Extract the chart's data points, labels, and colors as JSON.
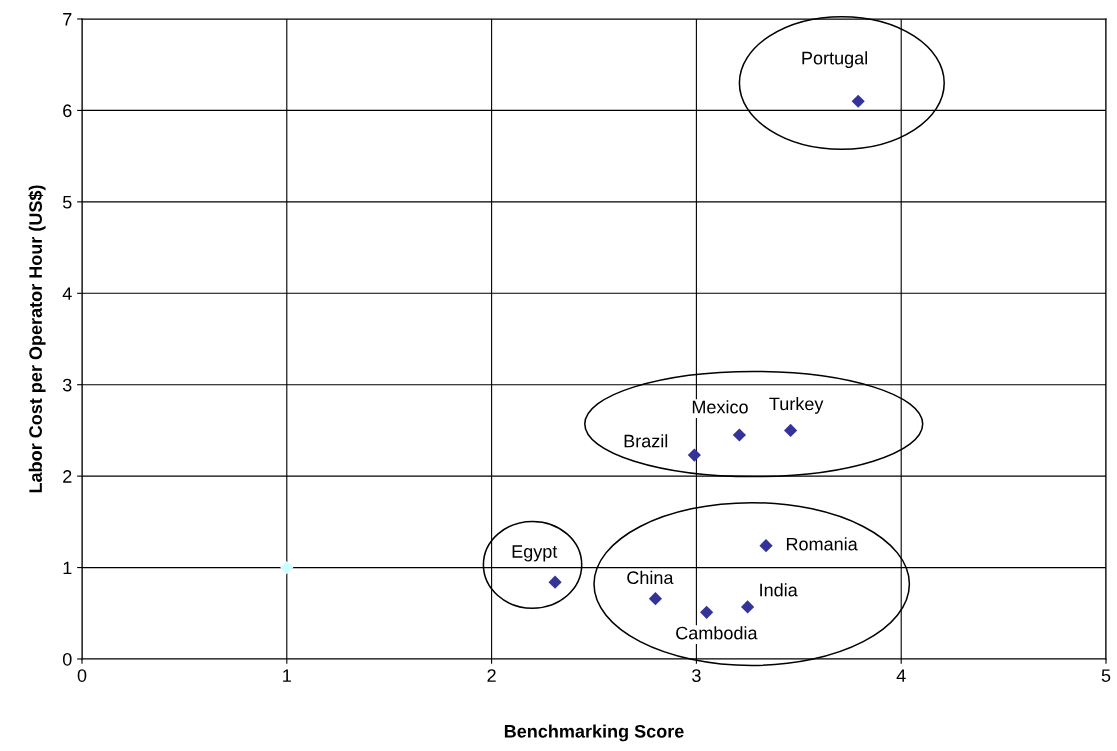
{
  "chart_data": {
    "type": "scatter",
    "xlabel": "Benchmarking Score",
    "ylabel": "Labor Cost per Operator Hour (US$)",
    "series": [
      {
        "color": "#333399",
        "x": [
          3.79,
          3.21,
          3.46,
          2.99,
          3.34,
          2.31,
          2.8,
          3.25,
          3.05
        ],
        "values": [
          6.1,
          2.45,
          2.5,
          2.23,
          1.24,
          0.84,
          0.66,
          0.57,
          0.51
        ]
      },
      {
        "color": "#ccffff",
        "x": [
          1
        ],
        "values": [
          1
        ]
      }
    ],
    "marker": "diamond",
    "grid": true,
    "xlim": [
      0,
      5
    ],
    "xticks": [
      0,
      1,
      2,
      3,
      4,
      5
    ],
    "ylim": [
      0,
      7
    ],
    "yticks": [
      0,
      1,
      2,
      3,
      4,
      5,
      6,
      7
    ],
    "annotations": [
      {
        "text": "Portugal",
        "x": 3.79,
        "y": 6.1
      },
      {
        "text": "Mexico",
        "x": 3.21,
        "y": 2.45
      },
      {
        "text": "Turkey",
        "x": 3.46,
        "y": 2.5
      },
      {
        "text": "Brazil",
        "x": 2.99,
        "y": 2.23
      },
      {
        "text": "Romania",
        "x": 3.34,
        "y": 1.24
      },
      {
        "text": "Egypt",
        "x": 2.31,
        "y": 0.84
      },
      {
        "text": "China",
        "x": 2.8,
        "y": 0.66
      },
      {
        "text": "India",
        "x": 3.25,
        "y": 0.57
      },
      {
        "text": "Cambodia",
        "x": 3.05,
        "y": 0.51
      }
    ]
  }
}
